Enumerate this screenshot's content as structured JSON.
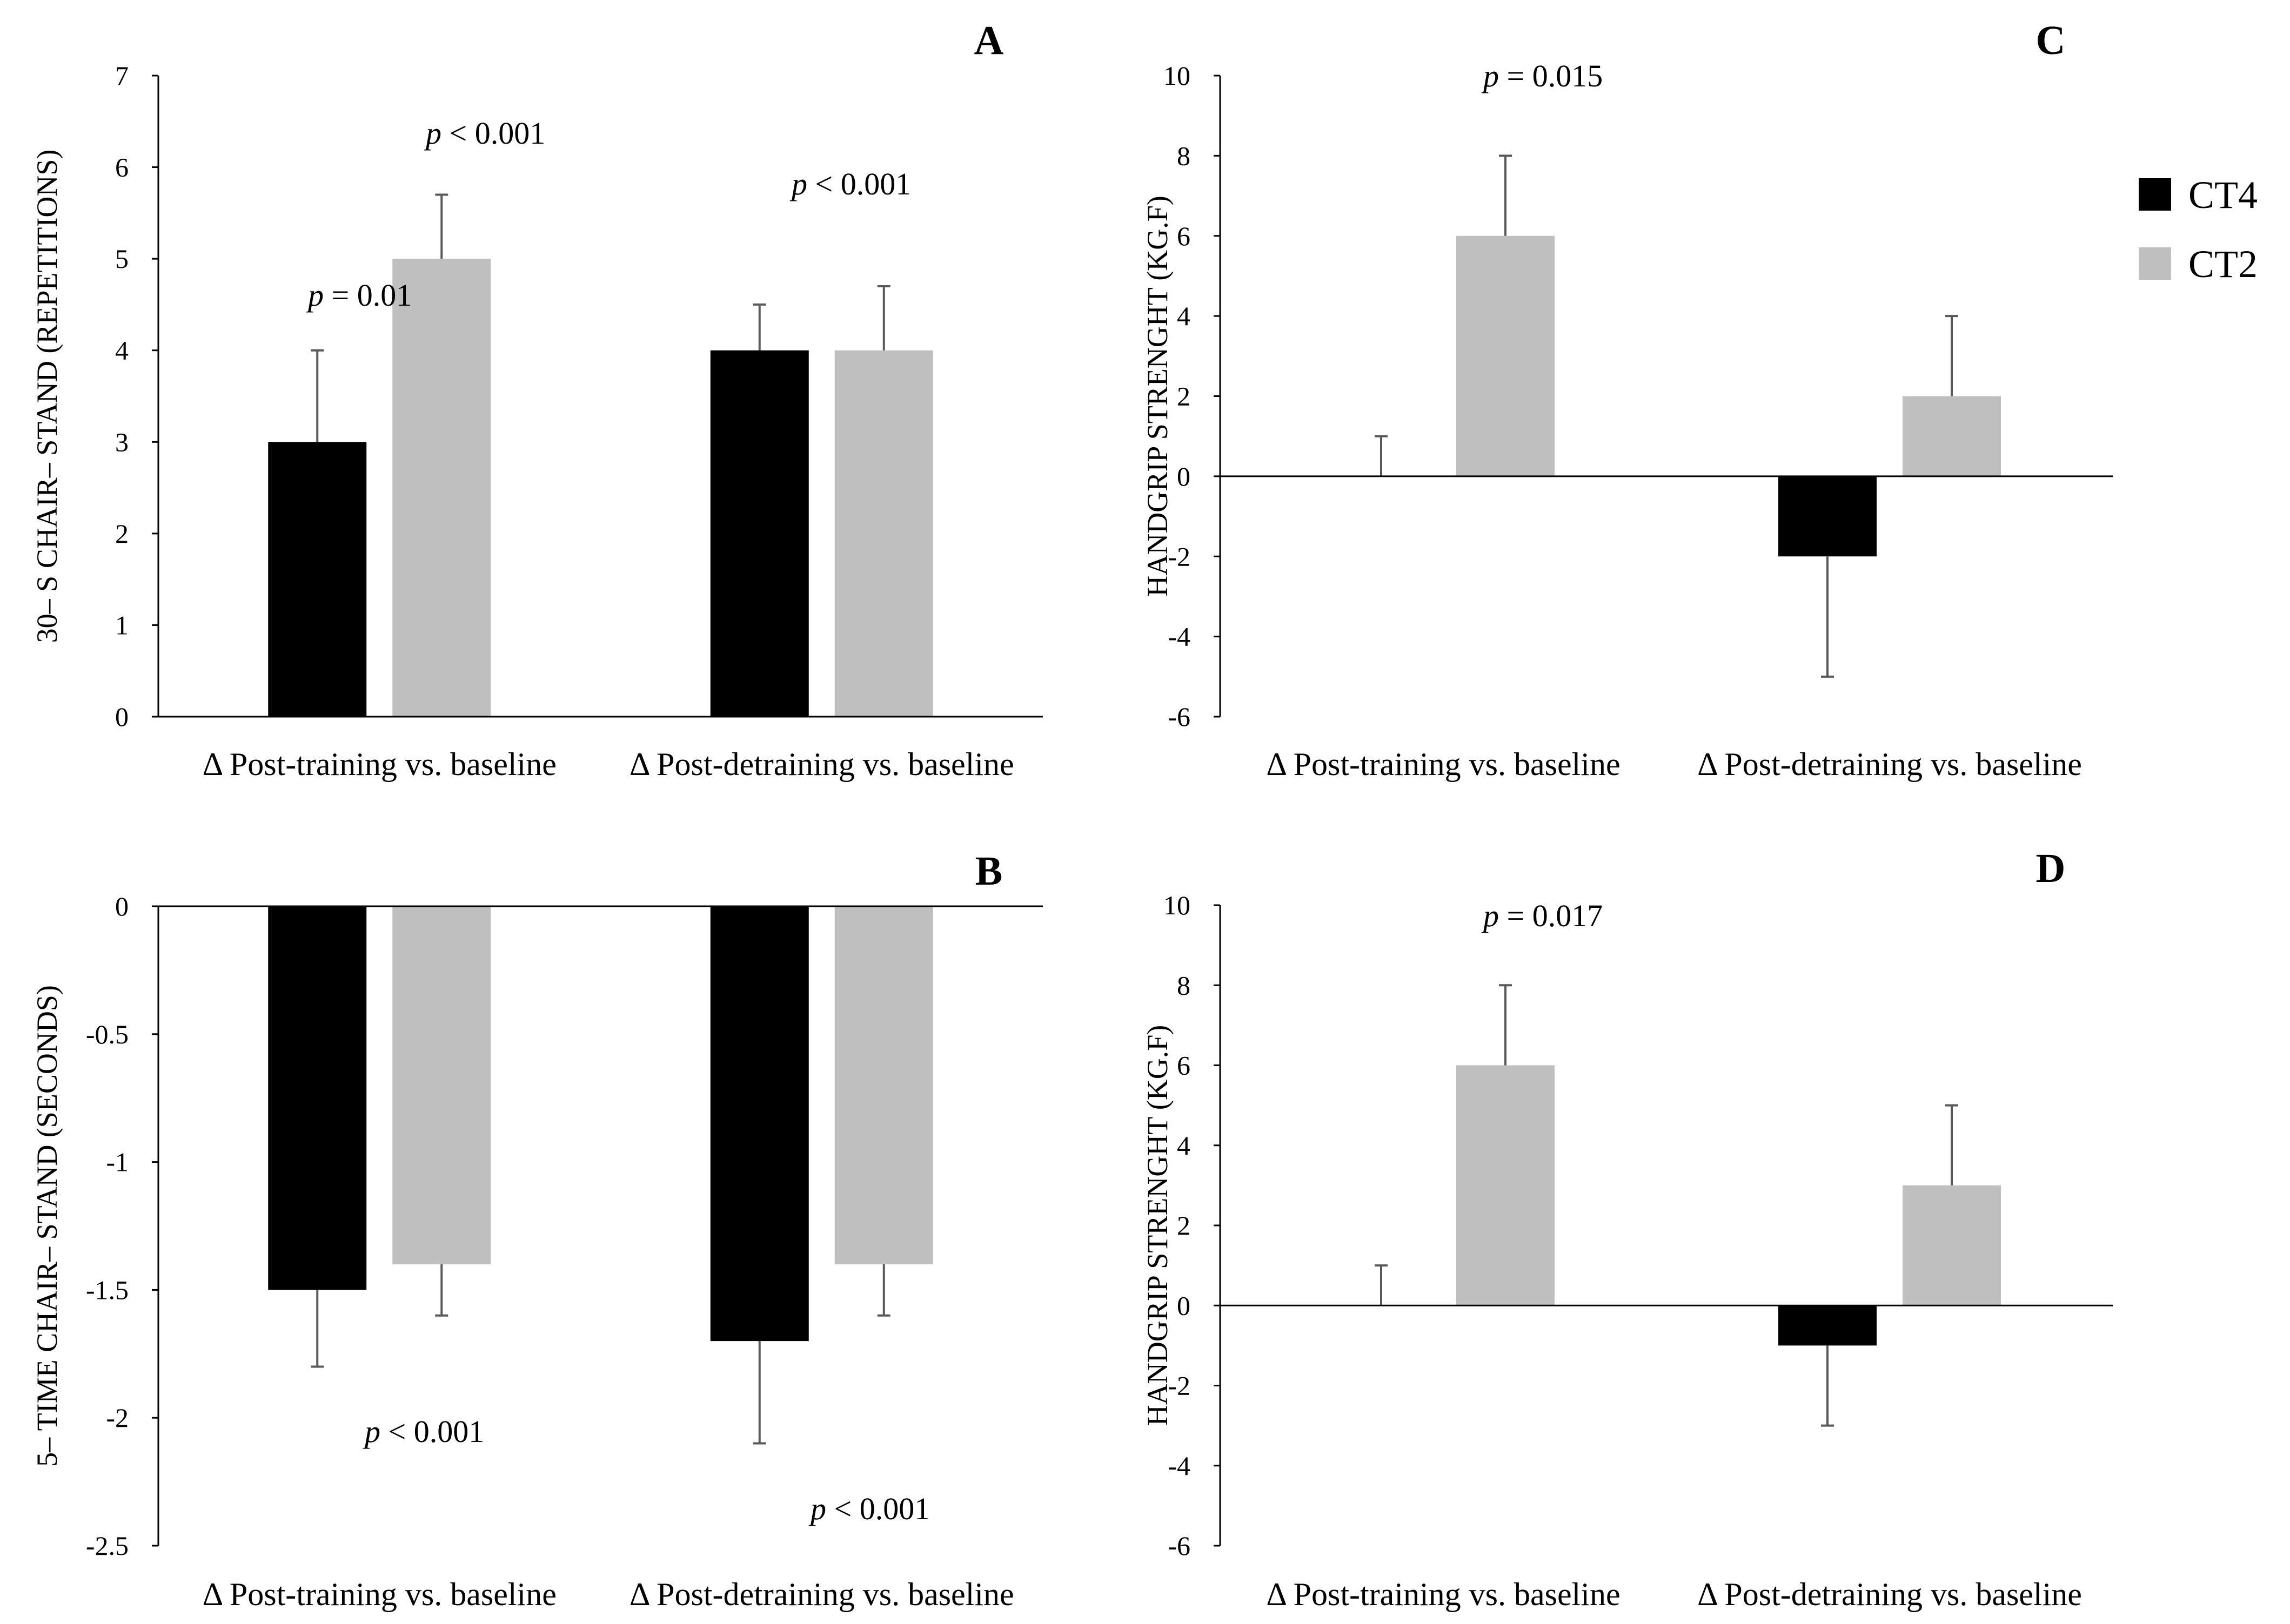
{
  "legend": {
    "entries": [
      {
        "label": "CT4",
        "color": "#000000"
      },
      {
        "label": "CT2",
        "color": "#bfbfbf"
      }
    ],
    "placement": "right"
  },
  "colors": {
    "CT4": "#000000",
    "CT2": "#bfbfbf",
    "axis": "#000000",
    "error_bar": "#595959"
  },
  "chart_data": [
    {
      "type": "bar",
      "panel": "A",
      "ylabel": "30– S CHAIR– STAND (REPETITIONS)",
      "categories": [
        "Δ Post-training vs. baseline",
        "Δ Post-detraining vs. baseline"
      ],
      "ylim": [
        0,
        7
      ],
      "yticks": [
        "0",
        "1",
        "2",
        "3",
        "4",
        "5",
        "6",
        "7"
      ],
      "series": [
        {
          "name": "CT4",
          "values": [
            3,
            4
          ],
          "error": [
            1,
            0.5
          ]
        },
        {
          "name": "CT2",
          "values": [
            5,
            4
          ],
          "error": [
            0.7,
            0.7
          ]
        }
      ],
      "annotations": [
        {
          "italic": "p",
          "text": " = 0.01",
          "category": 0,
          "series": 0
        },
        {
          "italic": "p",
          "text": " < 0.001",
          "category": 0,
          "series": 1
        },
        {
          "italic": "p",
          "text": " < 0.001",
          "category": 1,
          "series": 0
        }
      ]
    },
    {
      "type": "bar",
      "panel": "B",
      "ylabel": "5– TIME CHAIR– STAND (SECONDS)",
      "categories": [
        "Δ Post-training vs. baseline",
        "Δ Post-detraining vs. baseline"
      ],
      "ylim": [
        -2.5,
        0
      ],
      "yticks": [
        "-2.5",
        "-2",
        "-1.5",
        "-1",
        "-0.5",
        "0"
      ],
      "series": [
        {
          "name": "CT4",
          "values": [
            -1.5,
            -1.7
          ],
          "error": [
            0.3,
            0.4
          ]
        },
        {
          "name": "CT2",
          "values": [
            -1.4,
            -1.4
          ],
          "error": [
            0.2,
            0.2
          ]
        }
      ],
      "annotations": [
        {
          "italic": "p",
          "text": " < 0.001",
          "category": 0,
          "series": 0
        },
        {
          "italic": "p",
          "text": " < 0.001",
          "category": 1,
          "series": 0
        }
      ]
    },
    {
      "type": "bar",
      "panel": "C",
      "ylabel": "HANDGRIP STRENGHT (KG.F)",
      "categories": [
        "Δ Post-training vs. baseline",
        "Δ Post-detraining vs. baseline"
      ],
      "ylim": [
        -6,
        10
      ],
      "yticks": [
        "-6",
        "-4",
        "-2",
        "0",
        "2",
        "4",
        "6",
        "8",
        "10"
      ],
      "series": [
        {
          "name": "CT4",
          "values": [
            0,
            -2
          ],
          "error": [
            1,
            3
          ]
        },
        {
          "name": "CT2",
          "values": [
            6,
            2
          ],
          "error": [
            2,
            2
          ]
        }
      ],
      "annotations": [
        {
          "italic": "p",
          "text": " = 0.015",
          "category": 0,
          "series": 0
        }
      ]
    },
    {
      "type": "bar",
      "panel": "D",
      "ylabel": "HANDGRIP STRENGHT (KG.F)",
      "categories": [
        "Δ Post-training vs. baseline",
        "Δ Post-detraining vs. baseline"
      ],
      "ylim": [
        -6,
        10
      ],
      "yticks": [
        "-6",
        "-4",
        "-2",
        "0",
        "2",
        "4",
        "6",
        "8",
        "10"
      ],
      "series": [
        {
          "name": "CT4",
          "values": [
            0,
            -1
          ],
          "error": [
            1,
            2
          ]
        },
        {
          "name": "CT2",
          "values": [
            6,
            3
          ],
          "error": [
            2,
            2
          ]
        }
      ],
      "annotations": [
        {
          "italic": "p",
          "text": " = 0.017",
          "category": 0,
          "series": 0
        }
      ]
    }
  ]
}
